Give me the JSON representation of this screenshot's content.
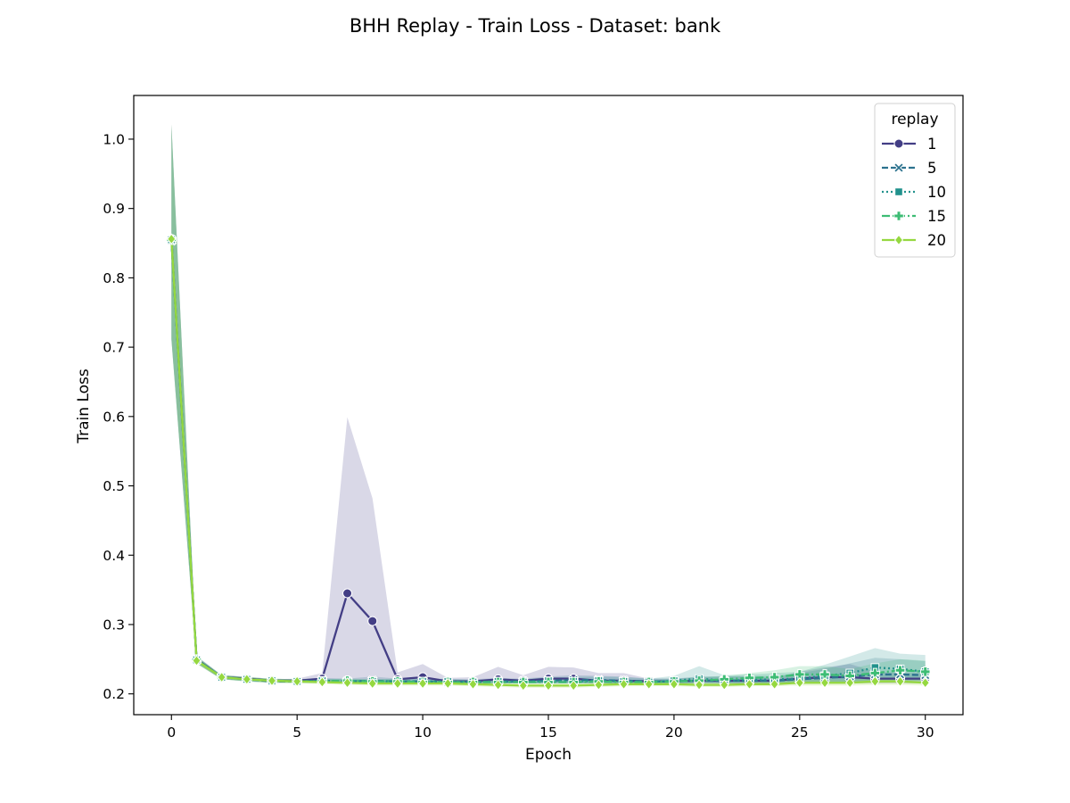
{
  "chart_data": {
    "type": "line",
    "title": "BHH Replay - Train Loss - Dataset: bank",
    "xlabel": "Epoch",
    "ylabel": "Train Loss",
    "xlim": [
      -1.5,
      31.5
    ],
    "ylim": [
      0.17,
      1.063
    ],
    "xticks": [
      0,
      5,
      10,
      15,
      20,
      25,
      30
    ],
    "xtick_labels": [
      "0",
      "5",
      "10",
      "15",
      "20",
      "25",
      "30"
    ],
    "yticks": [
      0.2,
      0.3,
      0.4,
      0.5,
      0.6,
      0.7,
      0.8,
      0.9,
      1.0
    ],
    "ytick_labels": [
      "0.2",
      "0.3",
      "0.4",
      "0.5",
      "0.6",
      "0.7",
      "0.8",
      "0.9",
      "1.0"
    ],
    "grid": false,
    "legend_title": "replay",
    "legend_position": "top-right",
    "x": [
      0,
      1,
      2,
      3,
      4,
      5,
      6,
      7,
      8,
      9,
      10,
      11,
      12,
      13,
      14,
      15,
      16,
      17,
      18,
      19,
      20,
      21,
      22,
      23,
      24,
      25,
      26,
      27,
      28,
      29,
      30
    ],
    "series": [
      {
        "name": "1",
        "color": "#433e85",
        "dash": "solid",
        "marker": "circle",
        "values": [
          0.856,
          0.25,
          0.224,
          0.222,
          0.219,
          0.219,
          0.222,
          0.345,
          0.305,
          0.221,
          0.224,
          0.218,
          0.218,
          0.221,
          0.219,
          0.222,
          0.222,
          0.219,
          0.219,
          0.218,
          0.218,
          0.219,
          0.219,
          0.219,
          0.219,
          0.222,
          0.224,
          0.224,
          0.222,
          0.222,
          0.222
        ],
        "band_low": [
          0.712,
          0.245,
          0.221,
          0.219,
          0.217,
          0.217,
          0.217,
          0.215,
          0.215,
          0.215,
          0.215,
          0.215,
          0.215,
          0.215,
          0.215,
          0.215,
          0.215,
          0.215,
          0.215,
          0.215,
          0.215,
          0.215,
          0.215,
          0.215,
          0.215,
          0.215,
          0.215,
          0.215,
          0.215,
          0.215,
          0.215
        ],
        "band_high": [
          1.022,
          0.255,
          0.227,
          0.225,
          0.221,
          0.222,
          0.23,
          0.599,
          0.482,
          0.231,
          0.243,
          0.223,
          0.224,
          0.239,
          0.227,
          0.239,
          0.238,
          0.23,
          0.23,
          0.222,
          0.222,
          0.224,
          0.225,
          0.225,
          0.223,
          0.232,
          0.238,
          0.243,
          0.232,
          0.23,
          0.23
        ]
      },
      {
        "name": "5",
        "color": "#2c728e",
        "dash": "dashed",
        "marker": "x",
        "values": [
          0.854,
          0.249,
          0.224,
          0.221,
          0.218,
          0.218,
          0.219,
          0.218,
          0.219,
          0.218,
          0.218,
          0.217,
          0.217,
          0.218,
          0.218,
          0.219,
          0.22,
          0.22,
          0.219,
          0.218,
          0.218,
          0.219,
          0.219,
          0.219,
          0.219,
          0.221,
          0.223,
          0.225,
          0.228,
          0.228,
          0.227
        ],
        "band_low": [
          0.71,
          0.244,
          0.221,
          0.218,
          0.216,
          0.216,
          0.216,
          0.215,
          0.215,
          0.215,
          0.215,
          0.215,
          0.215,
          0.215,
          0.215,
          0.215,
          0.215,
          0.215,
          0.215,
          0.215,
          0.215,
          0.215,
          0.215,
          0.215,
          0.215,
          0.215,
          0.216,
          0.217,
          0.218,
          0.218,
          0.218
        ],
        "band_high": [
          1.02,
          0.254,
          0.227,
          0.224,
          0.221,
          0.221,
          0.223,
          0.222,
          0.225,
          0.222,
          0.222,
          0.221,
          0.221,
          0.223,
          0.222,
          0.225,
          0.227,
          0.226,
          0.225,
          0.222,
          0.222,
          0.225,
          0.225,
          0.226,
          0.226,
          0.23,
          0.236,
          0.244,
          0.252,
          0.25,
          0.247
        ]
      },
      {
        "name": "10",
        "color": "#21918c",
        "dash": "dotted",
        "marker": "square",
        "values": [
          0.855,
          0.249,
          0.224,
          0.221,
          0.219,
          0.218,
          0.219,
          0.218,
          0.218,
          0.218,
          0.218,
          0.218,
          0.217,
          0.218,
          0.217,
          0.219,
          0.218,
          0.219,
          0.218,
          0.217,
          0.219,
          0.222,
          0.219,
          0.22,
          0.221,
          0.222,
          0.226,
          0.23,
          0.238,
          0.236,
          0.232
        ],
        "band_low": [
          0.711,
          0.244,
          0.221,
          0.218,
          0.216,
          0.216,
          0.216,
          0.215,
          0.215,
          0.215,
          0.215,
          0.215,
          0.215,
          0.215,
          0.215,
          0.215,
          0.215,
          0.215,
          0.215,
          0.215,
          0.215,
          0.216,
          0.215,
          0.215,
          0.215,
          0.216,
          0.217,
          0.218,
          0.22,
          0.22,
          0.219
        ],
        "band_high": [
          1.021,
          0.254,
          0.227,
          0.224,
          0.222,
          0.221,
          0.222,
          0.221,
          0.221,
          0.222,
          0.222,
          0.222,
          0.22,
          0.222,
          0.221,
          0.224,
          0.224,
          0.225,
          0.224,
          0.222,
          0.226,
          0.24,
          0.227,
          0.228,
          0.23,
          0.232,
          0.242,
          0.254,
          0.266,
          0.258,
          0.256
        ]
      },
      {
        "name": "15",
        "color": "#3dbc74",
        "dash": "dashdot",
        "marker": "plus",
        "values": [
          0.855,
          0.249,
          0.224,
          0.221,
          0.219,
          0.218,
          0.218,
          0.219,
          0.218,
          0.218,
          0.217,
          0.217,
          0.217,
          0.217,
          0.217,
          0.217,
          0.217,
          0.218,
          0.217,
          0.217,
          0.218,
          0.219,
          0.221,
          0.223,
          0.224,
          0.228,
          0.228,
          0.226,
          0.23,
          0.234,
          0.232
        ],
        "band_low": [
          0.711,
          0.244,
          0.221,
          0.218,
          0.216,
          0.216,
          0.215,
          0.215,
          0.215,
          0.215,
          0.215,
          0.215,
          0.215,
          0.215,
          0.215,
          0.215,
          0.215,
          0.215,
          0.215,
          0.215,
          0.215,
          0.215,
          0.216,
          0.216,
          0.216,
          0.217,
          0.217,
          0.217,
          0.218,
          0.219,
          0.219
        ],
        "band_high": [
          1.021,
          0.254,
          0.227,
          0.224,
          0.222,
          0.221,
          0.221,
          0.222,
          0.221,
          0.221,
          0.22,
          0.22,
          0.22,
          0.22,
          0.22,
          0.22,
          0.22,
          0.221,
          0.22,
          0.22,
          0.221,
          0.224,
          0.226,
          0.23,
          0.234,
          0.24,
          0.24,
          0.236,
          0.244,
          0.25,
          0.248
        ]
      },
      {
        "name": "20",
        "color": "#95d840",
        "dash": "solid",
        "marker": "diamond",
        "values": [
          0.856,
          0.248,
          0.224,
          0.221,
          0.219,
          0.218,
          0.217,
          0.216,
          0.215,
          0.215,
          0.215,
          0.215,
          0.214,
          0.213,
          0.212,
          0.212,
          0.212,
          0.213,
          0.214,
          0.214,
          0.214,
          0.213,
          0.213,
          0.214,
          0.214,
          0.216,
          0.216,
          0.216,
          0.218,
          0.218,
          0.216
        ],
        "band_low": [
          0.712,
          0.243,
          0.221,
          0.218,
          0.216,
          0.215,
          0.214,
          0.213,
          0.212,
          0.212,
          0.212,
          0.212,
          0.211,
          0.21,
          0.209,
          0.209,
          0.209,
          0.21,
          0.211,
          0.211,
          0.211,
          0.21,
          0.21,
          0.211,
          0.211,
          0.212,
          0.212,
          0.212,
          0.213,
          0.213,
          0.212
        ],
        "band_high": [
          1.022,
          0.253,
          0.227,
          0.224,
          0.222,
          0.221,
          0.22,
          0.219,
          0.218,
          0.218,
          0.218,
          0.218,
          0.217,
          0.216,
          0.215,
          0.215,
          0.215,
          0.216,
          0.217,
          0.217,
          0.217,
          0.216,
          0.216,
          0.217,
          0.217,
          0.22,
          0.22,
          0.22,
          0.223,
          0.223,
          0.22
        ]
      }
    ]
  }
}
